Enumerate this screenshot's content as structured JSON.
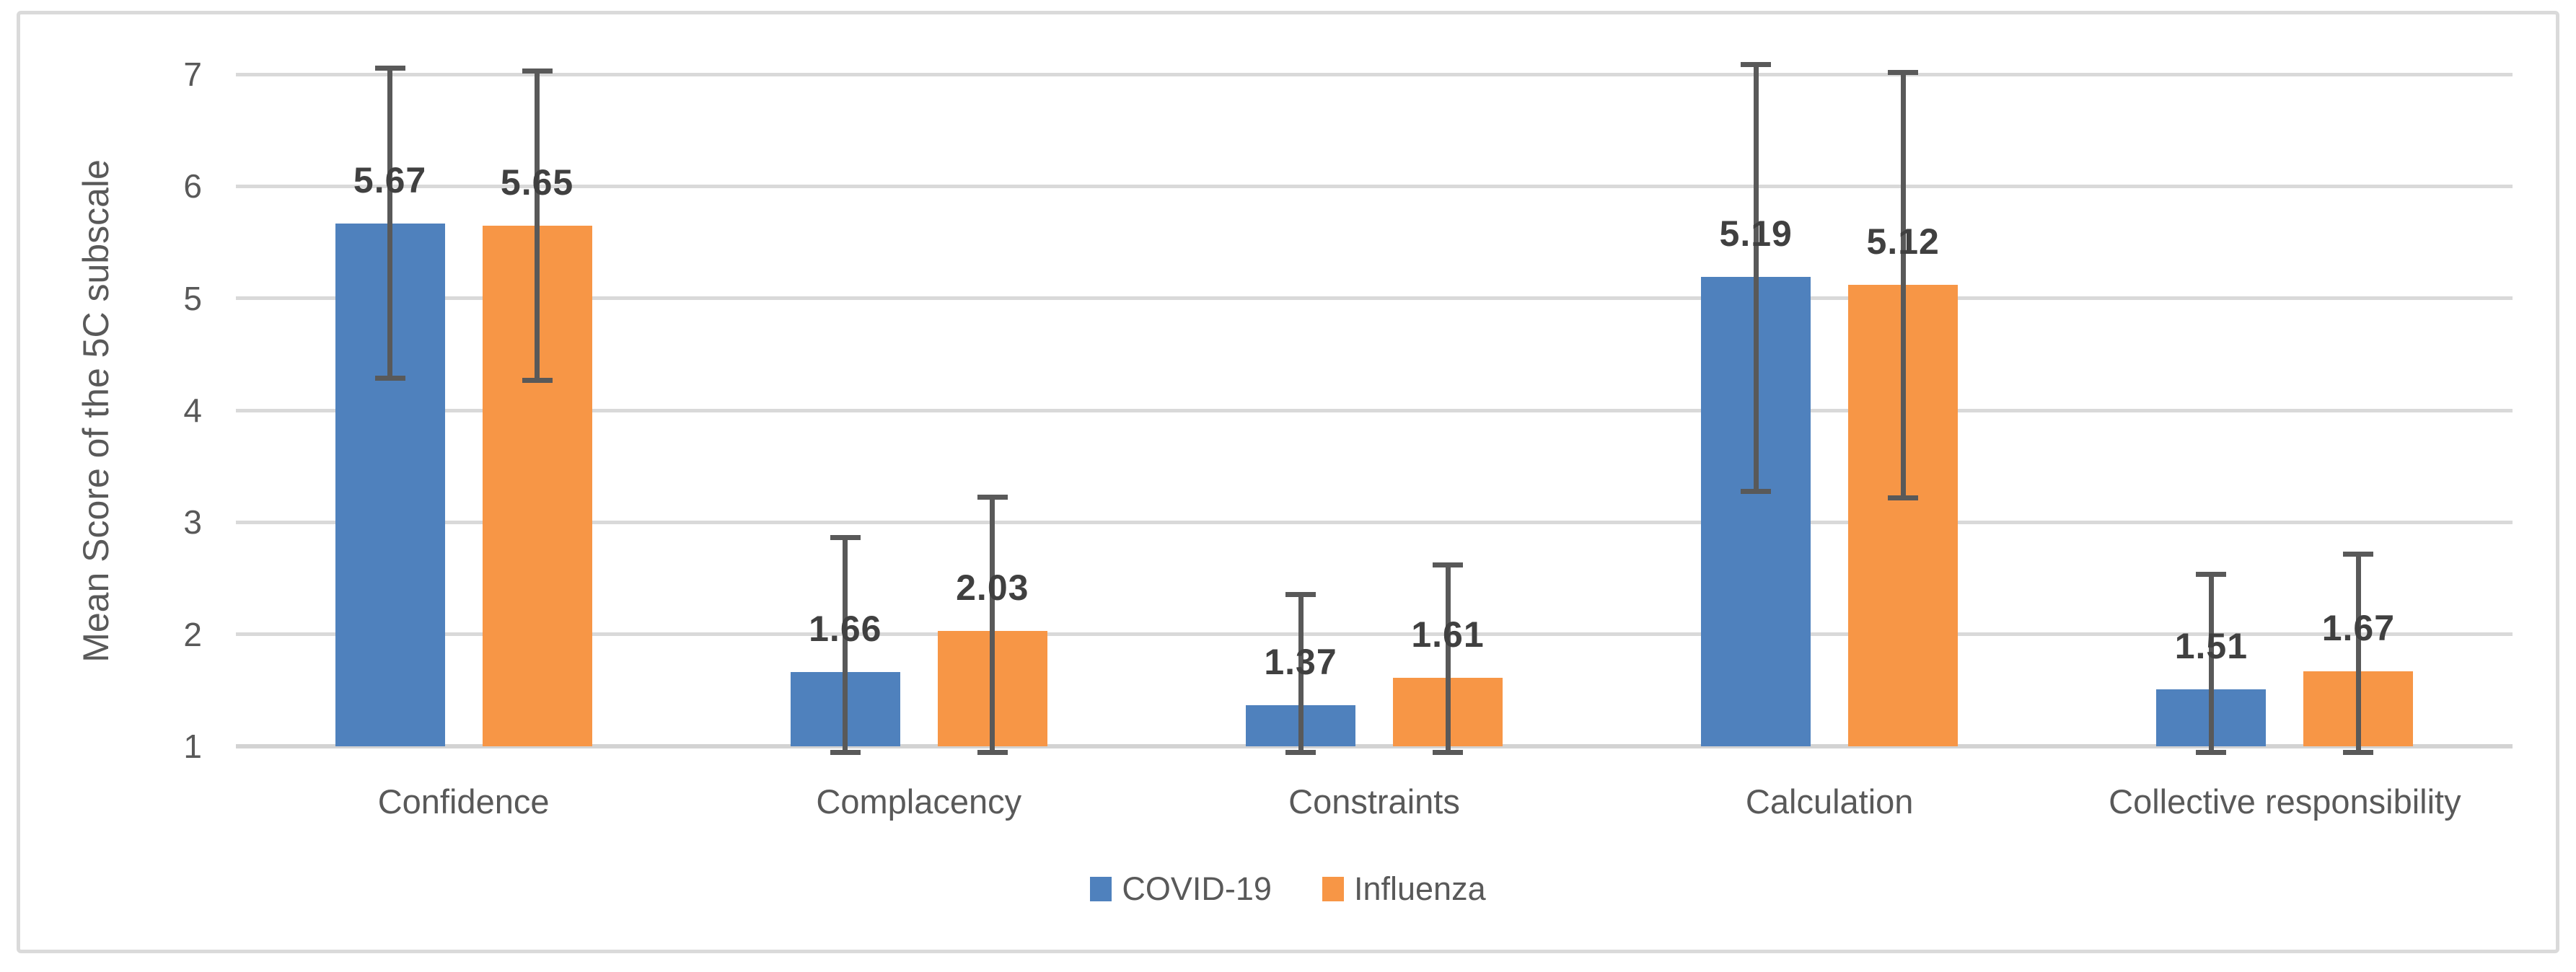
{
  "chart_data": {
    "type": "bar",
    "title": "",
    "ylabel": "Mean Score of the 5C subscale",
    "xlabel": "",
    "ylim": [
      1,
      7
    ],
    "yticks": [
      1,
      2,
      3,
      4,
      5,
      6,
      7
    ],
    "grid": true,
    "legend_position": "bottom",
    "categories": [
      "Confidence",
      "Complacency",
      "Constraints",
      "Calculation",
      "Collective responsibility"
    ],
    "series": [
      {
        "name": "COVID-19",
        "color": "#4F81BD",
        "values": [
          5.67,
          1.66,
          1.37,
          5.19,
          1.51
        ],
        "data_labels": [
          "5.67",
          "1.66",
          "1.37",
          "5.19",
          "1.51"
        ],
        "error_top": [
          7.06,
          2.87,
          2.36,
          7.09,
          2.54
        ],
        "error_bottom_shown": [
          4.29,
          0.95,
          0.95,
          3.28,
          0.95
        ]
      },
      {
        "name": "Influenza",
        "color": "#F79646",
        "values": [
          5.65,
          2.03,
          1.61,
          5.12,
          1.67
        ],
        "data_labels": [
          "5.65",
          "2.03",
          "1.61",
          "5.12",
          "1.67"
        ],
        "error_top": [
          7.03,
          3.23,
          2.62,
          7.02,
          2.72
        ],
        "error_bottom_shown": [
          4.27,
          0.95,
          0.95,
          3.22,
          0.95
        ]
      }
    ],
    "style_colors": {
      "gridline": "#d9d9d9",
      "axis_line": "#d3d3d3",
      "axis_text": "#595959",
      "data_label_text": "#404040",
      "error_bar": "#595959",
      "border": "#dadada",
      "background": "#ffffff"
    }
  }
}
